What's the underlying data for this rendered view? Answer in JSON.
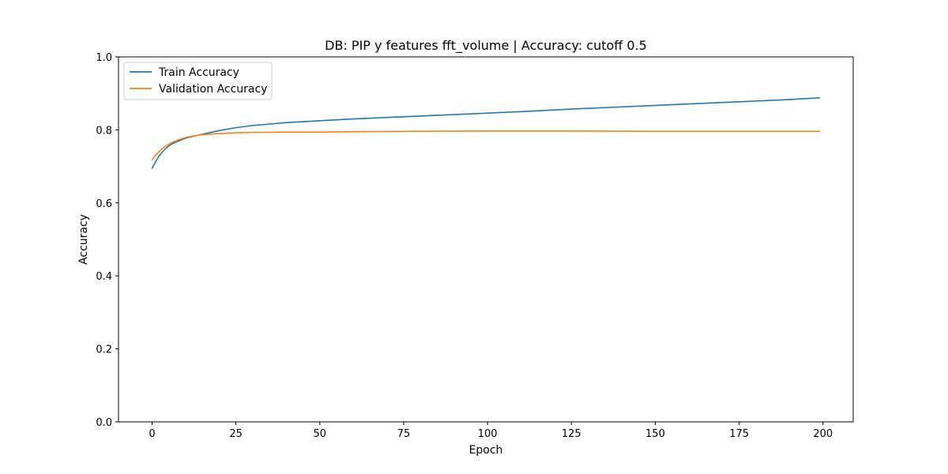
{
  "chart_data": {
    "type": "line",
    "title": "DB: PIP y features fft_volume | Accuracy: cutoff 0.5",
    "xlabel": "Epoch",
    "ylabel": "Accuracy",
    "xlim": [
      -10,
      209
    ],
    "ylim": [
      0.0,
      1.0
    ],
    "xticks": [
      0,
      25,
      50,
      75,
      100,
      125,
      150,
      175,
      200
    ],
    "yticks": [
      0.0,
      0.2,
      0.4,
      0.6,
      0.8,
      1.0
    ],
    "xtick_labels": [
      "0",
      "25",
      "50",
      "75",
      "100",
      "125",
      "150",
      "175",
      "200"
    ],
    "ytick_labels": [
      "0.0",
      "0.2",
      "0.4",
      "0.6",
      "0.8",
      "1.0"
    ],
    "grid": false,
    "legend_position": "upper-left",
    "series": [
      {
        "name": "Train Accuracy",
        "color": "#1f77b4",
        "x": [
          0,
          1,
          2,
          3,
          4,
          5,
          6,
          8,
          10,
          12,
          15,
          20,
          25,
          30,
          40,
          50,
          60,
          75,
          100,
          110,
          125,
          150,
          175,
          190,
          199
        ],
        "y": [
          0.695,
          0.712,
          0.727,
          0.739,
          0.748,
          0.756,
          0.762,
          0.77,
          0.777,
          0.782,
          0.788,
          0.798,
          0.806,
          0.812,
          0.82,
          0.825,
          0.83,
          0.836,
          0.846,
          0.85,
          0.857,
          0.867,
          0.877,
          0.883,
          0.888
        ]
      },
      {
        "name": "Validation Accuracy",
        "color": "#ff7f0e",
        "x": [
          0,
          1,
          2,
          3,
          4,
          5,
          6,
          8,
          10,
          12,
          15,
          20,
          25,
          30,
          40,
          50,
          60,
          75,
          100,
          125,
          150,
          175,
          199
        ],
        "y": [
          0.718,
          0.73,
          0.74,
          0.748,
          0.755,
          0.761,
          0.766,
          0.773,
          0.779,
          0.783,
          0.787,
          0.79,
          0.792,
          0.793,
          0.794,
          0.794,
          0.795,
          0.796,
          0.797,
          0.797,
          0.796,
          0.796,
          0.796
        ]
      }
    ]
  }
}
